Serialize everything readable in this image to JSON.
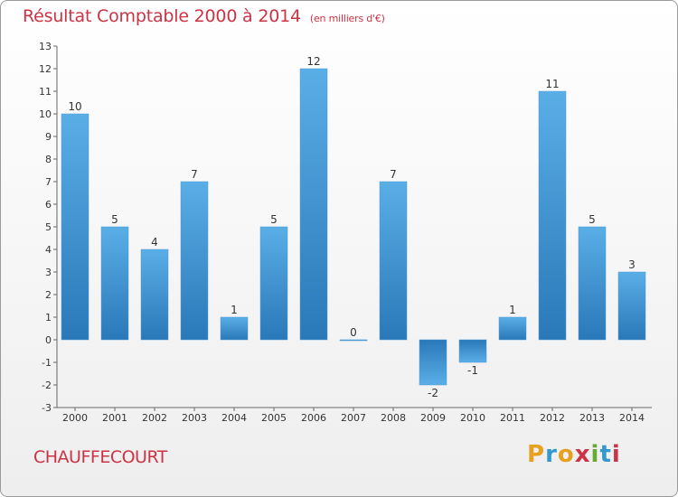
{
  "title": "Résultat Comptable 2000 à 2014",
  "unit": "(en milliers d'€)",
  "commune": "CHAUFFECOURT",
  "logo": [
    "P",
    "r",
    "o",
    "x",
    "i",
    "t",
    "i"
  ],
  "logo_colors": [
    "#e8a020",
    "#3399cc",
    "#e8a020",
    "#cc3344",
    "#66aa33",
    "#3399cc",
    "#cc3344"
  ],
  "colors": {
    "bar_top": "#5aaee6",
    "bar_bottom": "#2a78b8",
    "title": "#cc3344"
  },
  "chart_data": {
    "type": "bar",
    "categories": [
      "2000",
      "2001",
      "2002",
      "2003",
      "2004",
      "2005",
      "2006",
      "2007",
      "2008",
      "2009",
      "2010",
      "2011",
      "2012",
      "2013",
      "2014"
    ],
    "values": [
      10,
      5,
      4,
      7,
      1,
      5,
      12,
      0,
      7,
      -2,
      -1,
      1,
      11,
      5,
      3
    ],
    "value_labels": [
      "10",
      "5",
      "4",
      "7",
      "1",
      "5",
      "12",
      "0",
      "7",
      "-2",
      "-1",
      "1",
      "11",
      "5",
      "3"
    ],
    "ylim": [
      -3,
      13
    ],
    "yticks": [
      -3,
      -2,
      -1,
      0,
      1,
      2,
      3,
      4,
      5,
      6,
      7,
      8,
      9,
      10,
      11,
      12,
      13
    ],
    "grid": false,
    "title": "Résultat Comptable 2000 à 2014",
    "xlabel": "",
    "ylabel": ""
  }
}
